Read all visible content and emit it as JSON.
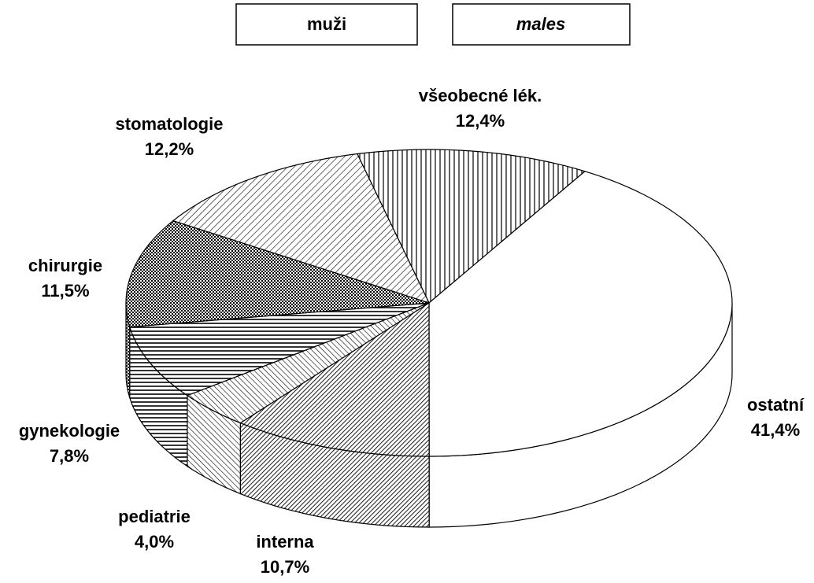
{
  "chart_data": {
    "type": "pie3d",
    "title": "muži",
    "subtitle": "males",
    "categories": [
      "všeobecné lék.",
      "ostatní",
      "interna",
      "pediatrie",
      "gynekologie",
      "chirurgie",
      "stomatologie"
    ],
    "values": [
      12.4,
      41.4,
      10.7,
      4.0,
      7.8,
      11.5,
      12.2
    ],
    "value_labels": [
      "12,4%",
      "41,4%",
      "10,7%",
      "4,0%",
      "7,8%",
      "11,5%",
      "12,2%"
    ]
  }
}
